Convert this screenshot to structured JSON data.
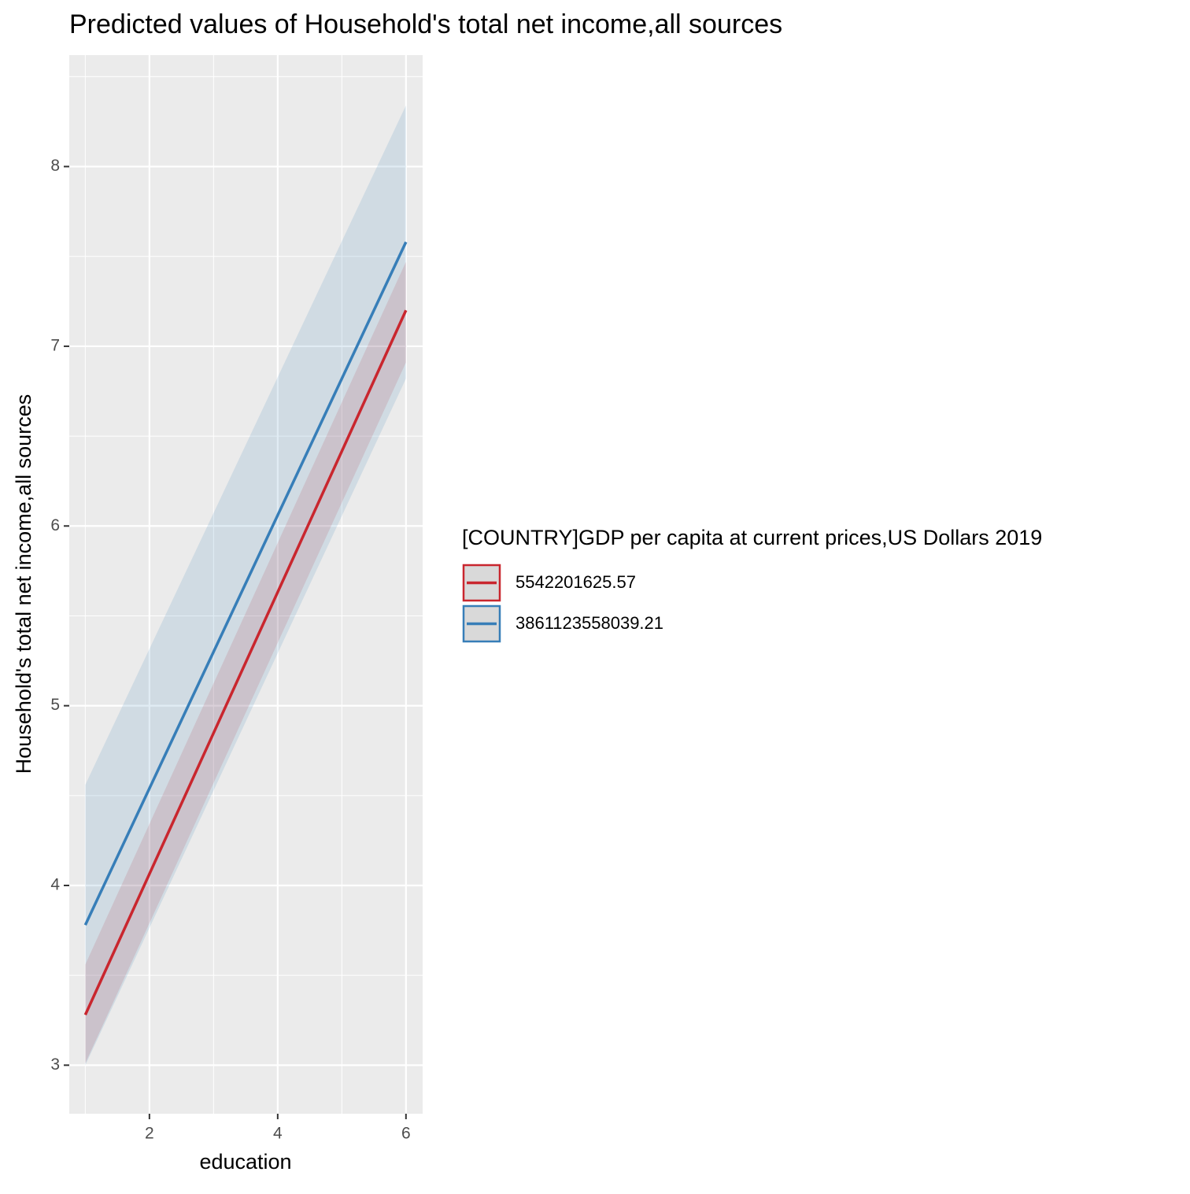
{
  "chart_data": {
    "type": "ribbon-line",
    "title": "Predicted values of Household's total net income,all sources",
    "x_label": "education",
    "y_label": "Household's total net income,all sources",
    "legend_title": "[COUNTRY]GDP per capita at current prices,US Dollars 2019",
    "legend_position": "right",
    "grid": true,
    "x": [
      1,
      6
    ],
    "xlim": [
      0.75,
      6.26
    ],
    "xticks": [
      2,
      4,
      6
    ],
    "ylim": [
      2.73,
      8.62
    ],
    "yticks": [
      3,
      4,
      5,
      6,
      7,
      8
    ],
    "series": [
      {
        "name": "5542201625.57",
        "color": "#c9262e",
        "values": [
          3.28,
          7.2
        ],
        "lower": [
          3.01,
          6.91
        ],
        "upper": [
          3.56,
          7.47
        ]
      },
      {
        "name": "3861123558039.21",
        "color": "#377eb8",
        "values": [
          3.78,
          7.58
        ],
        "lower": [
          3.0,
          6.82
        ],
        "upper": [
          4.56,
          8.34
        ]
      }
    ]
  }
}
